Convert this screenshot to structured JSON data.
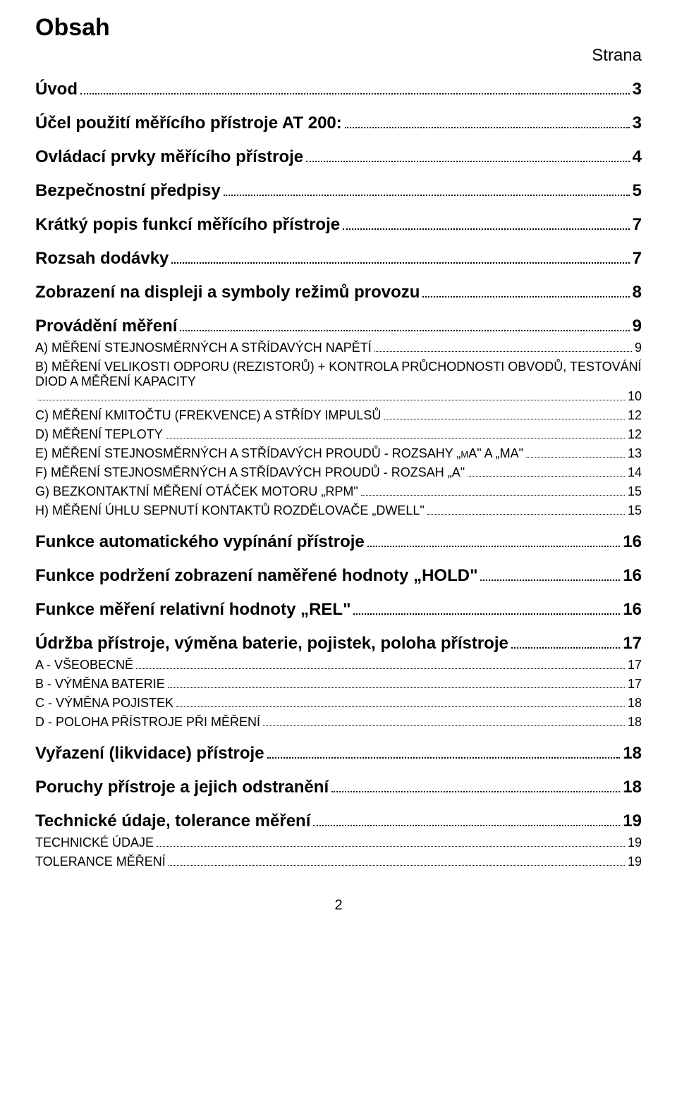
{
  "title": "Obsah",
  "strana_label": "Strana",
  "footer_page_num": "2",
  "toc": [
    {
      "level": 1,
      "label": "Úvod",
      "page": "3"
    },
    {
      "level": 1,
      "label": "Účel použití měřícího přístroje AT 200:",
      "page": "3"
    },
    {
      "level": 1,
      "label": "Ovládací prvky měřícího přístroje",
      "page": "4"
    },
    {
      "level": 1,
      "label": "Bezpečnostní předpisy",
      "page": "5"
    },
    {
      "level": 1,
      "label": "Krátký popis funkcí měřícího přístroje",
      "page": "7"
    },
    {
      "level": 1,
      "label": "Rozsah dodávky",
      "page": "7"
    },
    {
      "level": 1,
      "label": "Zobrazení na displeji a symboly režimů provozu",
      "page": "8"
    },
    {
      "level": 1,
      "label": "Provádění měření",
      "page": "9"
    },
    {
      "level": 2,
      "label": "A) MĚŘENÍ STEJNOSMĚRNÝCH A STŘÍDAVÝCH NAPĚTÍ",
      "page": "9"
    },
    {
      "level": 2,
      "label": "B) MĚŘENÍ VELIKOSTI ODPORU (REZISTORŮ) + KONTROLA PRŮCHODNOSTI OBVODŮ, TESTOVÁNÍ DIOD A MĚŘENÍ KAPACITY",
      "page": "10"
    },
    {
      "level": 2,
      "label": "C) MĚŘENÍ KMITOČTU (FREKVENCE) A STŘÍDY IMPULSŮ",
      "page": "12"
    },
    {
      "level": 2,
      "label": "D) MĚŘENÍ TEPLOTY",
      "page": "12"
    },
    {
      "level": 2,
      "label": "E) MĚŘENÍ STEJNOSMĚRNÝCH A STŘÍDAVÝCH PROUDŮ -  ROZSAHY „µA\" A „MA\"",
      "page": "13"
    },
    {
      "level": 2,
      "label": "F) MĚŘENÍ STEJNOSMĚRNÝCH A STŘÍDAVÝCH PROUDŮ -  ROZSAH „A\"",
      "page": "14"
    },
    {
      "level": 2,
      "label": "G) BEZKONTAKTNÍ MĚŘENÍ OTÁČEK MOTORU „RPM\"",
      "page": "15"
    },
    {
      "level": 2,
      "label": "H) MĚŘENÍ ÚHLU SEPNUTÍ KONTAKTŮ ROZDĚLOVAČE „DWELL\"",
      "page": "15"
    },
    {
      "level": 1,
      "label": "Funkce automatického vypínání přístroje",
      "page": "16"
    },
    {
      "level": 1,
      "label": "Funkce podržení zobrazení naměřené hodnoty „HOLD\"",
      "page": "16"
    },
    {
      "level": 1,
      "label": "Funkce měření relativní hodnoty „REL\"",
      "page": "16"
    },
    {
      "level": 1,
      "label": "Údržba přístroje, výměna baterie, pojistek, poloha přístroje",
      "page": "17"
    },
    {
      "level": 2,
      "label": "A - VŠEOBECNĚ",
      "page": "17"
    },
    {
      "level": 2,
      "label": "B - VÝMĚNA BATERIE",
      "page": "17"
    },
    {
      "level": 2,
      "label": "C - VÝMĚNA POJISTEK",
      "page": "18"
    },
    {
      "level": 2,
      "label": "D - POLOHA PŘÍSTROJE PŘI MĚŘENÍ",
      "page": "18"
    },
    {
      "level": 1,
      "label": "Vyřazení (likvidace) přístroje",
      "page": "18"
    },
    {
      "level": 1,
      "label": "Poruchy přístroje a jejich odstranění",
      "page": "18"
    },
    {
      "level": 1,
      "label": "Technické údaje, tolerance měření",
      "page": "19"
    },
    {
      "level": 2,
      "label": "TECHNICKÉ ÚDAJE",
      "page": "19"
    },
    {
      "level": 2,
      "label": "TOLERANCE MĚŘENÍ",
      "page": "19"
    }
  ]
}
